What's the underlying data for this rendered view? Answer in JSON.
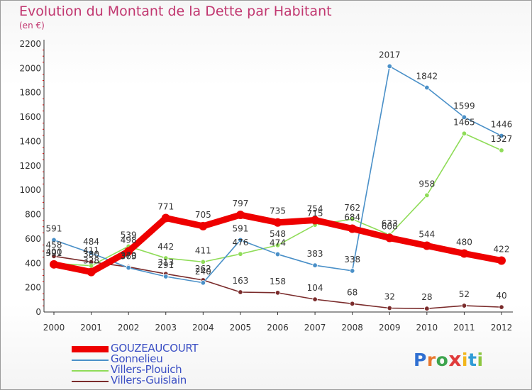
{
  "header": {
    "title": "Evolution du Montant de la Dette par Habitant",
    "subtitle": "(en €)"
  },
  "logo": {
    "text": "Proxiti",
    "colors": [
      "#2f6fd1",
      "#e8772e",
      "#3da44d",
      "#e03b3b",
      "#f2b61c",
      "#2f9bd6",
      "#8cc63f"
    ]
  },
  "chart_data": {
    "type": "line",
    "title": "Evolution du Montant de la Dette par Habitant",
    "subtitle": "(en €)",
    "xlabel": "",
    "ylabel": "",
    "x": [
      "2000",
      "2001",
      "2002",
      "2003",
      "2004",
      "2005",
      "2006",
      "2007",
      "2008",
      "2009",
      "2010",
      "2011",
      "2012"
    ],
    "ylim": [
      0,
      2200
    ],
    "yticks": [
      0,
      200,
      400,
      600,
      800,
      1000,
      1200,
      1400,
      1600,
      1800,
      2000,
      2200
    ],
    "grid": false,
    "legend": "bottom-left",
    "series": [
      {
        "name": "GOUZEAUCOURT",
        "color": "#ee0000",
        "values": [
          391,
          328,
          498,
          771,
          705,
          797,
          735,
          754,
          684,
          608,
          544,
          480,
          422
        ],
        "labels": [
          "391",
          "328",
          "498",
          "771",
          "705",
          "797",
          "735",
          "754",
          "684",
          "608",
          "544",
          "480",
          "422"
        ]
      },
      {
        "name": "Gonnelieu",
        "color": "#4a90c8",
        "values": [
          591,
          484,
          363,
          291,
          240,
          591,
          474,
          383,
          338,
          2017,
          1842,
          1599,
          1446
        ],
        "labels": [
          "591",
          "484",
          "363",
          "291",
          "240",
          "591",
          "474",
          "383",
          "338",
          "2017",
          "1842",
          "1599",
          "1446"
        ]
      },
      {
        "name": "Villers-Plouich",
        "color": "#8fdc58",
        "values": [
          400,
          380,
          539,
          442,
          411,
          476,
          548,
          715,
          762,
          633,
          958,
          1465,
          1327
        ],
        "labels": [
          "400",
          "380",
          "539",
          "442",
          "411",
          "476",
          "548",
          "715",
          "762",
          "633",
          "958",
          "1465",
          "1327"
        ]
      },
      {
        "name": "Villers-Guislain",
        "color": "#7a2b2b",
        "values": [
          458,
          411,
          370,
          313,
          262,
          163,
          158,
          104,
          68,
          32,
          28,
          52,
          40
        ],
        "labels": [
          "458",
          "411",
          "370",
          "313",
          "262",
          "163",
          "158",
          "104",
          "68",
          "32",
          "28",
          "52",
          "40"
        ]
      }
    ]
  }
}
